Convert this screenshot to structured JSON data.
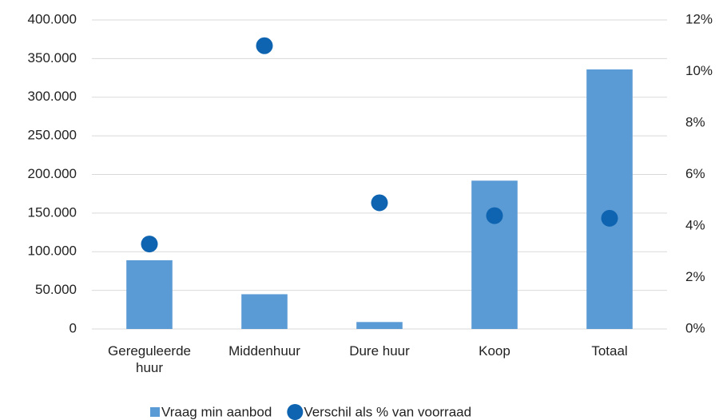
{
  "chart_data": {
    "type": "bar",
    "categories": [
      "Gereguleerde huur",
      "Middenhuur",
      "Dure huur",
      "Koop",
      "Totaal"
    ],
    "series": [
      {
        "name": "Vraag min aanbod",
        "color": "#5b9bd5",
        "type": "bar",
        "values": [
          89000,
          45000,
          9000,
          192000,
          336000
        ]
      },
      {
        "name": "Verschil als % van voorraad",
        "color": "#0e64b0",
        "type": "scatter",
        "axis": "y2",
        "values": [
          3.3,
          11.0,
          4.9,
          4.4,
          4.3
        ]
      }
    ],
    "ylim": [
      0,
      400000
    ],
    "yticks": [
      0,
      {
        "value": 50000,
        "label": "50.000"
      },
      {
        "value": 100000,
        "label": "100.000"
      },
      {
        "value": 150000,
        "label": "150.000"
      },
      {
        "value": 200000,
        "label": "200.000"
      },
      {
        "value": 250000,
        "label": "250.000"
      },
      {
        "value": 300000,
        "label": "300.000"
      },
      {
        "value": 350000,
        "label": "350.000"
      },
      {
        "value": 400000,
        "label": "400.000"
      }
    ],
    "y2lim": [
      0,
      12
    ],
    "y2ticks": [
      {
        "value": 0,
        "label": "0%"
      },
      {
        "value": 2,
        "label": "2%"
      },
      {
        "value": 4,
        "label": "4%"
      },
      {
        "value": 6,
        "label": "6%"
      },
      {
        "value": 8,
        "label": "8%"
      },
      {
        "value": 10,
        "label": "10%"
      },
      {
        "value": 12,
        "label": "12%"
      }
    ],
    "grid": true,
    "legend": "bottom"
  }
}
